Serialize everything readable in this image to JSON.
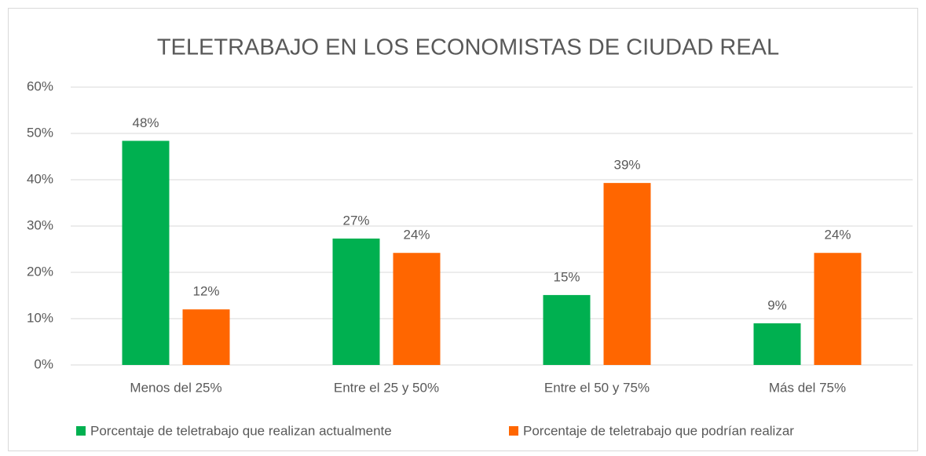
{
  "chart_data": {
    "type": "bar",
    "title": "TELETRABAJO EN LOS ECONOMISTAS DE CIUDAD REAL",
    "categories": [
      "Menos del 25%",
      "Entre el 25 y 50%",
      "Entre el 50 y 75%",
      "Más del 75%"
    ],
    "series": [
      {
        "name": "Porcentaje de teletrabajo que realizan actualmente",
        "color": "#00b050",
        "values": [
          48.4,
          27.3,
          15.1,
          9.0
        ],
        "value_labels": [
          "48%",
          "27%",
          "15%",
          "9%"
        ]
      },
      {
        "name": "Porcentaje de teletrabajo que podrían realizar",
        "color": "#ff6600",
        "values": [
          12.0,
          24.2,
          39.3,
          24.2
        ],
        "value_labels": [
          "12%",
          "24%",
          "39%",
          "24%"
        ]
      }
    ],
    "ylim": [
      0,
      60
    ],
    "yticks": [
      {
        "value": 0,
        "label": "0%"
      },
      {
        "value": 10,
        "label": "10%"
      },
      {
        "value": 20,
        "label": "20%"
      },
      {
        "value": 30,
        "label": "30%"
      },
      {
        "value": 40,
        "label": "40%"
      },
      {
        "value": 50,
        "label": "50%"
      },
      {
        "value": 60,
        "label": "60%"
      }
    ],
    "grid": true,
    "legend": "bottom"
  }
}
